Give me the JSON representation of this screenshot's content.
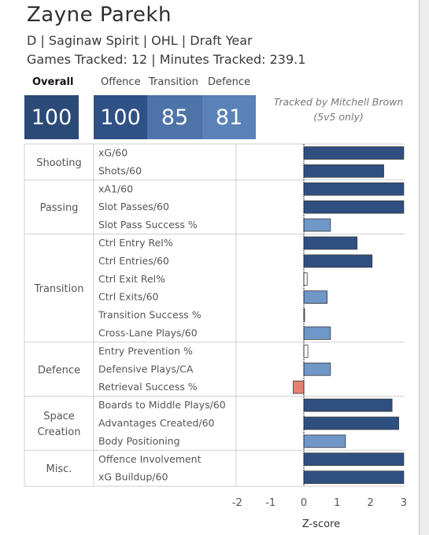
{
  "player": {
    "name": "Zayne Parekh",
    "info": "D | Saginaw Spirit | OHL | Draft Year",
    "games": "Games Tracked: 12 | Minutes Tracked: 239.1"
  },
  "ratings": {
    "overall_label": "Overall",
    "overall": "100",
    "offence_label": "Offence",
    "offence": "100",
    "transition_label": "Transition",
    "transition": "85",
    "defence_label": "Defence",
    "defence": "81"
  },
  "colors": {
    "overall": "#2b4a78",
    "offence": "#2e5186",
    "transition": "#4d73a8",
    "defence": "#5a82b8",
    "positive_strong": "#2f4f80",
    "positive_light": "#6f97c8",
    "negative": "#e8806f",
    "neutral": "#ffffff"
  },
  "tracker": {
    "line1": "Tracked by Mitchell Brown",
    "line2": "(5v5 only)"
  },
  "chart_data": {
    "type": "bar",
    "orientation": "horizontal",
    "xlabel": "Z-score",
    "xlim": [
      -2.2,
      3.0
    ],
    "xticks": [
      -2,
      -1,
      0,
      1,
      2,
      3
    ],
    "groups": [
      {
        "name": "Shooting",
        "metrics": [
          {
            "label": "xG/60",
            "value": 3.0
          },
          {
            "label": "Shots/60",
            "value": 2.4
          }
        ]
      },
      {
        "name": "Passing",
        "metrics": [
          {
            "label": "xA1/60",
            "value": 3.0
          },
          {
            "label": "Slot Passes/60",
            "value": 3.0
          },
          {
            "label": "Slot Pass Success %",
            "value": 0.8
          }
        ]
      },
      {
        "name": "Transition",
        "metrics": [
          {
            "label": "Ctrl Entry Rel%",
            "value": 1.6
          },
          {
            "label": "Ctrl Entries/60",
            "value": 2.05
          },
          {
            "label": "Ctrl Exit Rel%",
            "value": 0.1
          },
          {
            "label": "Ctrl Exits/60",
            "value": 0.7
          },
          {
            "label": "Transition Success %",
            "value": 0.02
          },
          {
            "label": "Cross-Lane Plays/60",
            "value": 0.8
          }
        ]
      },
      {
        "name": "Defence",
        "metrics": [
          {
            "label": "Entry Prevention %",
            "value": 0.12
          },
          {
            "label": "Defensive Plays/CA",
            "value": 0.8
          },
          {
            "label": "Retrieval Success %",
            "value": -0.32
          }
        ]
      },
      {
        "name": "Space Creation",
        "metrics": [
          {
            "label": "Boards to Middle Plays/60",
            "value": 2.65
          },
          {
            "label": "Advantages Created/60",
            "value": 2.85
          },
          {
            "label": "Body Positioning",
            "value": 1.25
          }
        ]
      },
      {
        "name": "Misc.",
        "metrics": [
          {
            "label": "Offence Involvement",
            "value": 3.0
          },
          {
            "label": "xG Buildup/60",
            "value": 3.0
          }
        ]
      }
    ]
  }
}
